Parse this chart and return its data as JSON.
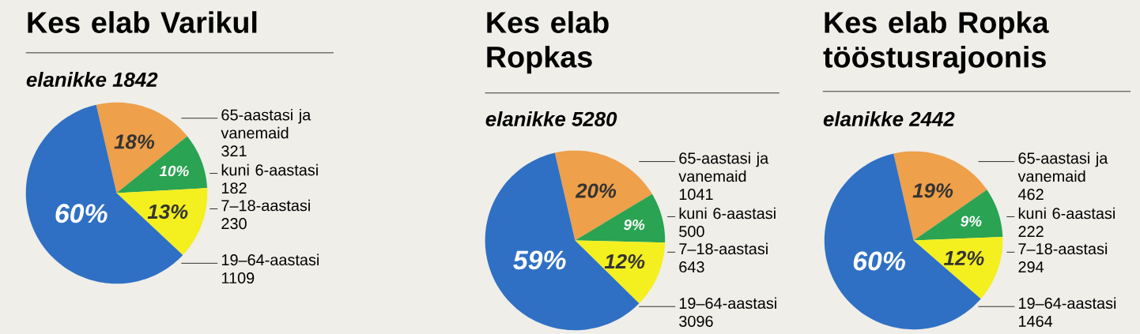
{
  "chart_data": [
    {
      "type": "pie",
      "title": "Kes elab Varikul",
      "subtitle": "elanikke 1842",
      "categories": [
        "65-aastasi ja vanemaid",
        "kuni 6-aastasi",
        "7–18-aastasi",
        "19–64-aastasi"
      ],
      "values": [
        18,
        10,
        13,
        60
      ],
      "colors": [
        "#eea04a",
        "#2aa352",
        "#f4ef1e",
        "#2f70c4"
      ],
      "value_labels": [
        "18%",
        "10%",
        "13%",
        "60%"
      ],
      "annotations": [
        "321",
        "182",
        "230",
        "1109"
      ]
    },
    {
      "type": "pie",
      "title": "Kes elab Ropkas",
      "subtitle": "elanikke 5280",
      "categories": [
        "65-aastasi ja vanemaid",
        "kuni 6-aastasi",
        "7–18-aastasi",
        "19–64-aastasi"
      ],
      "values": [
        20,
        9,
        12,
        59
      ],
      "colors": [
        "#eea04a",
        "#2aa352",
        "#f4ef1e",
        "#2f70c4"
      ],
      "value_labels": [
        "20%",
        "9%",
        "12%",
        "59%"
      ],
      "annotations": [
        "1041",
        "500",
        "643",
        "3096"
      ]
    },
    {
      "type": "pie",
      "title": "Kes elab Ropka tööstusrajoonis",
      "subtitle": "elanikke 2442",
      "categories": [
        "65-aastasi ja vanemaid",
        "kuni 6-aastasi",
        "7–18-aastasi",
        "19–64-aastasi"
      ],
      "values": [
        19,
        9,
        12,
        60
      ],
      "colors": [
        "#eea04a",
        "#2aa352",
        "#f4ef1e",
        "#2f70c4"
      ],
      "value_labels": [
        "19%",
        "9%",
        "12%",
        "60%"
      ],
      "annotations": [
        "462",
        "222",
        "294",
        "1464"
      ]
    }
  ]
}
